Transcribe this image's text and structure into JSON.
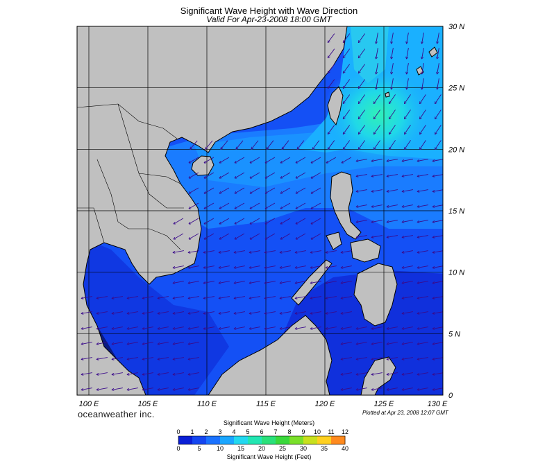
{
  "title": "Significant Wave Height with Wave Direction",
  "subtitle": "Valid For Apr-23-2008 18:00 GMT",
  "brand": "oceanweather inc.",
  "plotted": "Plotted at Apr 23, 2008 12:07 GMT",
  "map": {
    "lon_labels": [
      "100 E",
      "105 E",
      "110 E",
      "115 E",
      "120 E",
      "125 E",
      "130 E"
    ],
    "lat_labels": [
      "30 N",
      "25 N",
      "20 N",
      "15 N",
      "10 N",
      "5 N",
      "0"
    ],
    "lon_range": [
      99,
      130
    ],
    "lat_range": [
      0,
      30
    ],
    "land_color": "#c0c0c0",
    "grid": true
  },
  "legend": {
    "meters_title": "Significant Wave Height (Meters)",
    "feet_title": "Significant Wave Height (Feet)",
    "meters_ticks": [
      "0",
      "1",
      "2",
      "3",
      "4",
      "5",
      "6",
      "7",
      "8",
      "9",
      "10",
      "11",
      "12"
    ],
    "feet_ticks": [
      "0",
      "5",
      "10",
      "15",
      "20",
      "25",
      "30",
      "35",
      "40"
    ],
    "colors": [
      "#0a1fd6",
      "#1446f0",
      "#1a72ff",
      "#1aa6ff",
      "#22d8f0",
      "#22e6b2",
      "#2ae07a",
      "#3ad83c",
      "#7ae02a",
      "#c8e01e",
      "#ffd020",
      "#ff8a1e",
      "#ff3a1a"
    ]
  }
}
